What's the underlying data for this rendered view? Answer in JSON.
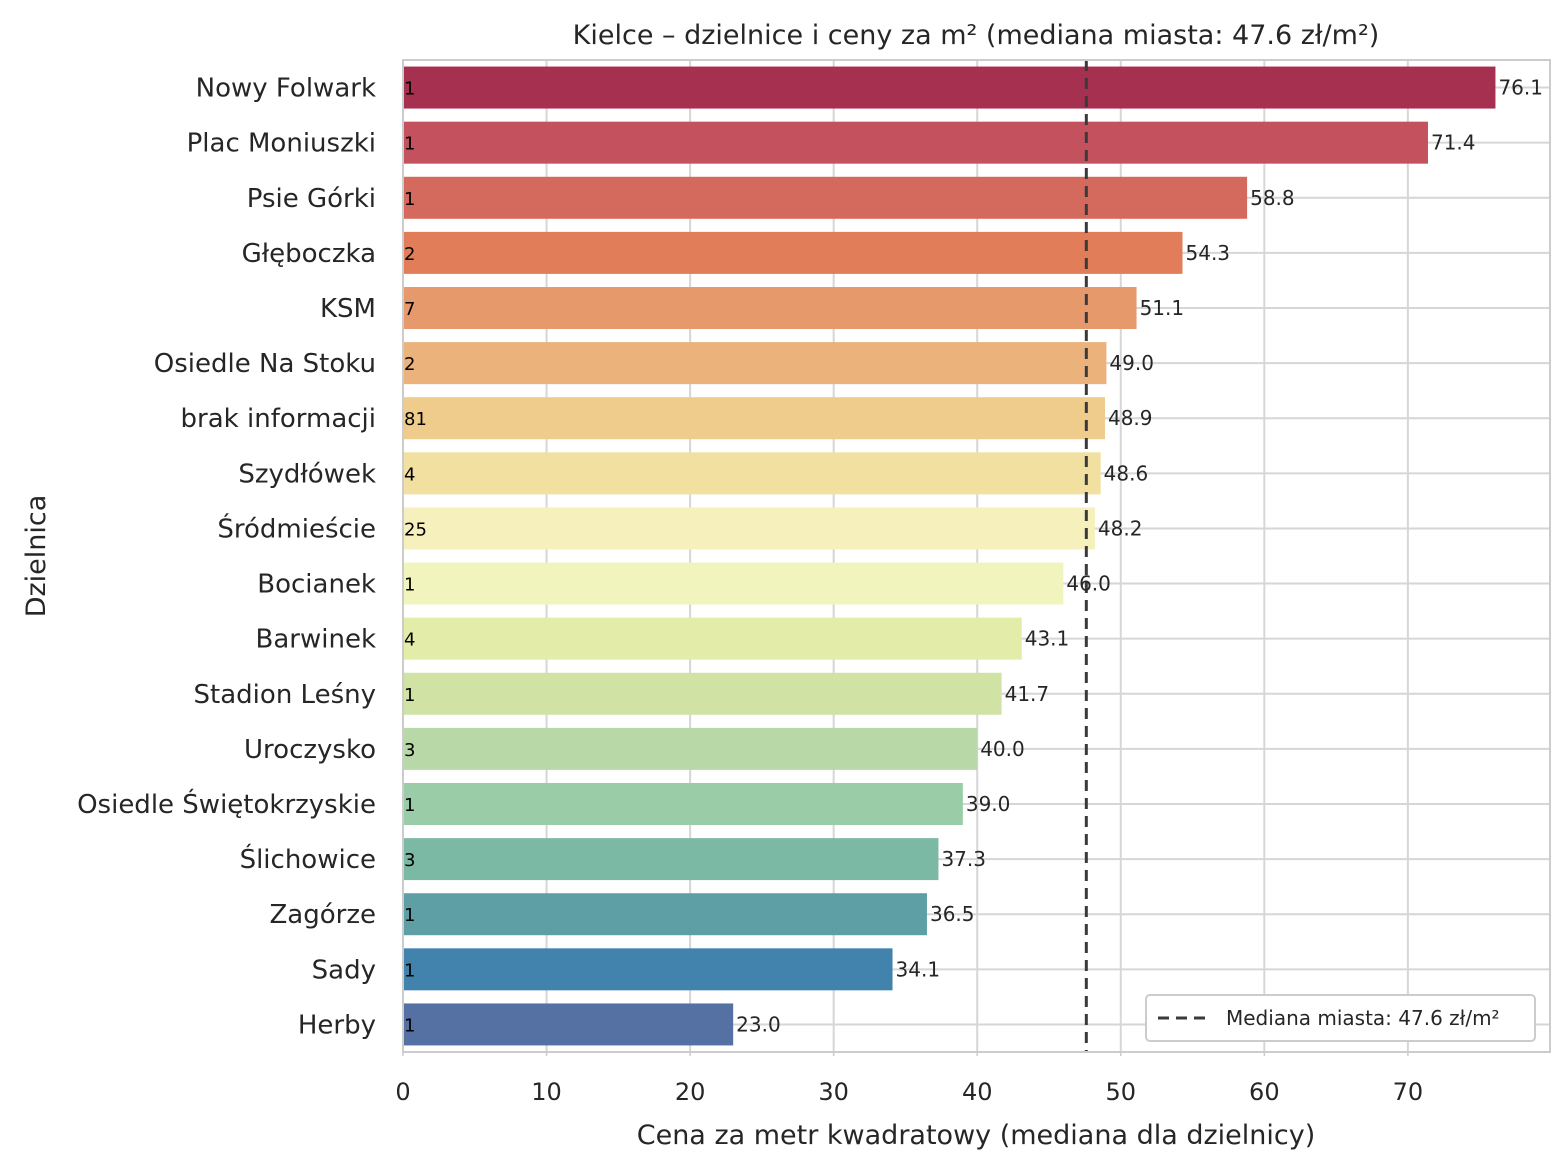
{
  "chart_data": {
    "type": "bar",
    "orientation": "horizontal",
    "title": "Kielce – dzielnice i ceny za m² (mediana miasta: 47.6 zł/m²)",
    "xlabel": "Cena za metr kwadratowy (mediana dla dzielnicy)",
    "ylabel": "Dzielnica",
    "xlim": [
      0,
      79.9
    ],
    "xticks": [
      0,
      10,
      20,
      30,
      40,
      50,
      60,
      70
    ],
    "grid": true,
    "categories": [
      "Nowy Folwark",
      "Plac Moniuszki",
      "Psie Górki",
      "Głęboczka",
      "KSM",
      "Osiedle Na Stoku",
      "brak informacji",
      "Szydłówek",
      "Śródmieście",
      "Bocianek",
      "Barwinek",
      "Stadion Leśny",
      "Uroczysko",
      "Osiedle Świętokrzyskie",
      "Ślichowice",
      "Zagórze",
      "Sady",
      "Herby"
    ],
    "values": [
      76.1,
      71.4,
      58.8,
      54.3,
      51.1,
      49.0,
      48.9,
      48.6,
      48.2,
      46.0,
      43.1,
      41.7,
      40.0,
      39.0,
      37.3,
      36.5,
      34.1,
      23.0
    ],
    "value_labels": [
      "76.1",
      "71.4",
      "58.8",
      "54.3",
      "51.1",
      "49.0",
      "48.9",
      "48.6",
      "48.2",
      "46.0",
      "43.1",
      "41.7",
      "40.0",
      "39.0",
      "37.3",
      "36.5",
      "34.1",
      "23.0"
    ],
    "counts": [
      "1",
      "1",
      "1",
      "2",
      "7",
      "2",
      "81",
      "4",
      "25",
      "1",
      "4",
      "1",
      "3",
      "1",
      "3",
      "1",
      "1",
      "1"
    ],
    "colors": [
      "#a63050",
      "#c4525e",
      "#d4695d",
      "#e27d5a",
      "#e69a6c",
      "#ebb27b",
      "#efcc8c",
      "#f2e0a0",
      "#f6f1bc",
      "#f1f5bd",
      "#e3eda9",
      "#d0e3a4",
      "#b8d9a7",
      "#9acca8",
      "#7bb9a5",
      "#5e9fa5",
      "#4283ae",
      "#5570a3"
    ],
    "median": {
      "value": 47.6,
      "label": "Mediana miasta: 47.6 zł/m²"
    },
    "legend": {
      "position": "lower-right"
    }
  }
}
